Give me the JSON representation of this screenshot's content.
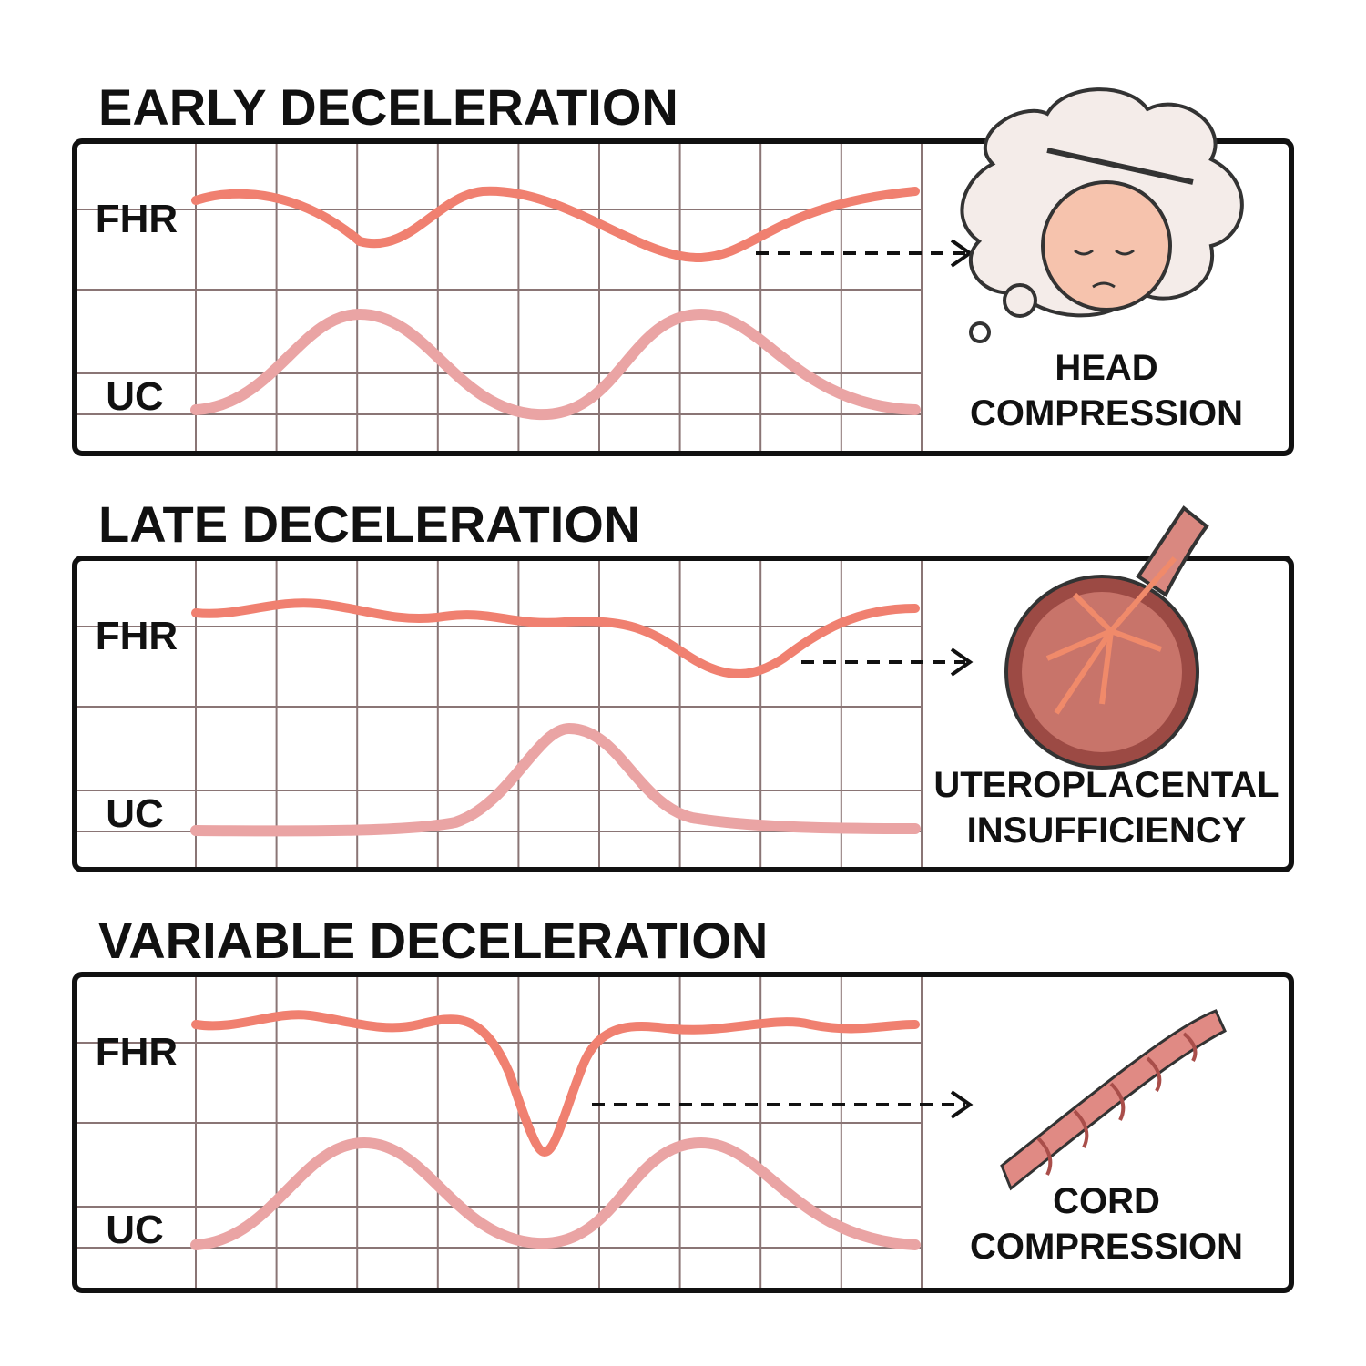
{
  "panels": [
    {
      "title": "EARLY DECELERATION",
      "traces": [
        "FHR",
        "UC"
      ],
      "cause": [
        "HEAD",
        "COMPRESSION"
      ]
    },
    {
      "title": "LATE DECELERATION",
      "traces": [
        "FHR",
        "UC"
      ],
      "cause": [
        "UTEROPLACENTAL",
        "INSUFFICIENCY"
      ]
    },
    {
      "title": "VARIABLE DECELERATION",
      "traces": [
        "FHR",
        "UC"
      ],
      "cause": [
        "CORD",
        "COMPRESSION"
      ]
    }
  ]
}
